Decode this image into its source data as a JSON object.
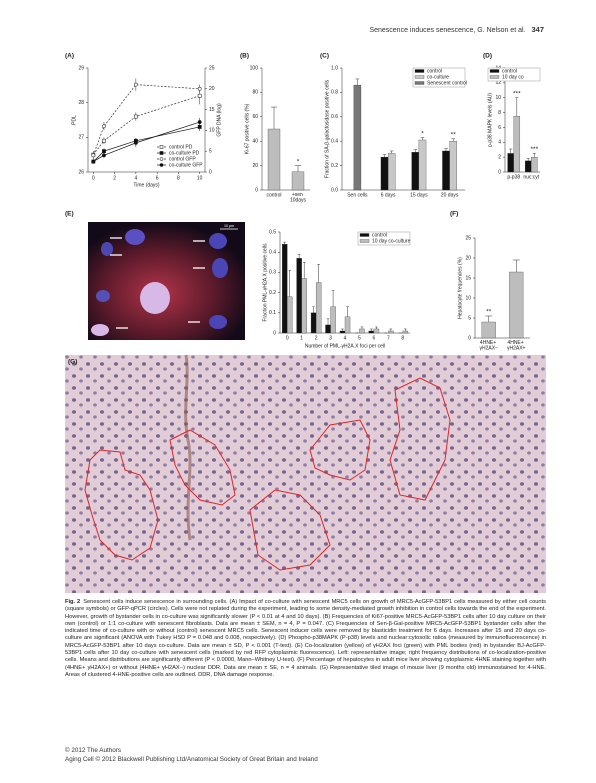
{
  "header": {
    "running_title": "Senescence induces senescence, G. Nelson et al.",
    "page_number": "347"
  },
  "panel_labels": [
    "(A)",
    "(B)",
    "(C)",
    "(D)",
    "(E)",
    "(F)",
    "(G)"
  ],
  "micrograph_scale": "10 µm",
  "chart_data": [
    {
      "type": "line",
      "xlabel": "Time (days)",
      "ylabel": "PDL",
      "y2label": "GFP DNA (log)",
      "x": [
        0,
        1,
        4,
        10
      ],
      "xlim": [
        -0.5,
        10.5
      ],
      "xticks": [
        0,
        2,
        4,
        6,
        8,
        10
      ],
      "ylim": [
        26,
        29
      ],
      "yticks": [
        26,
        27,
        28,
        29
      ],
      "y2lim": [
        0,
        25
      ],
      "y2ticks": [
        0,
        5,
        10,
        15,
        20,
        25
      ],
      "legend": "lower right",
      "series": [
        {
          "name": "control PD",
          "color": "#333333",
          "marker": "square",
          "filled": false,
          "dashed": true,
          "values": [
            26.5,
            26.9,
            27.6,
            28.2
          ],
          "errors": [
            0.1,
            0.1,
            0.12,
            0.25
          ]
        },
        {
          "name": "co-culture PD",
          "color": "#111111",
          "marker": "square",
          "filled": true,
          "dashed": false,
          "values": [
            26.3,
            26.6,
            26.9,
            27.3
          ],
          "errors": [
            0.05,
            0.08,
            0.08,
            0.12
          ]
        },
        {
          "name": "control GFP",
          "color": "#333333",
          "marker": "circle",
          "filled": false,
          "dashed": true,
          "axis": "y2",
          "values": [
            4,
            11,
            21,
            20
          ],
          "errors": [
            1,
            1,
            1.5,
            1
          ]
        },
        {
          "name": "co-culture GFP",
          "color": "#111111",
          "marker": "circle",
          "filled": true,
          "dashed": false,
          "axis": "y2",
          "values": [
            2.5,
            4,
            7,
            12
          ],
          "errors": [
            0.5,
            0.5,
            1,
            1
          ]
        }
      ]
    },
    {
      "type": "bar",
      "ylabel": "Ki-67 positive cells (%)",
      "categories": [
        "control",
        "+sen 10days"
      ],
      "values": [
        50,
        15
      ],
      "errors": [
        18,
        5
      ],
      "color": "#bdbdbd",
      "ylim": [
        0,
        100
      ],
      "yticks": [
        0,
        20,
        40,
        60,
        80,
        100
      ],
      "annotations": [
        "*"
      ]
    },
    {
      "type": "bar",
      "ylabel": "Fraction of SA-β-galactosidase positive cells",
      "categories": [
        "Sen cells",
        "6 days",
        "15 days",
        "20 days"
      ],
      "legend": "upper right",
      "ylim": [
        0,
        1
      ],
      "yticks": [
        {
          "value": 0,
          "label": "0.0"
        },
        0.2,
        0.4,
        0.6,
        0.8,
        {
          "value": 1,
          "label": "1.0"
        }
      ],
      "series": [
        {
          "name": "control",
          "color": "#111111",
          "values": [
            null,
            0.27,
            0.31,
            0.32
          ],
          "errors": [
            null,
            0.02,
            0.02,
            0.02
          ]
        },
        {
          "name": "co-culture",
          "color": "#c8c8c8",
          "values": [
            null,
            0.3,
            0.41,
            0.4
          ],
          "errors": [
            null,
            0.02,
            0.02,
            0.02
          ]
        },
        {
          "name": "Senescent control",
          "color": "#777777",
          "values": [
            0.86,
            null,
            null,
            null
          ],
          "errors": [
            0.05,
            null,
            null,
            null
          ]
        }
      ],
      "annotations": [
        "*",
        "**"
      ]
    },
    {
      "type": "bar",
      "ylabel": "p-p38 MAPK levels (AU)",
      "categories": [
        "p-p38",
        "nuc:cyt"
      ],
      "legend": "upper right",
      "ylim": [
        0,
        14
      ],
      "yticks": [
        0,
        2,
        4,
        6,
        8,
        10,
        12,
        14
      ],
      "series": [
        {
          "name": "control",
          "color": "#111111",
          "values": [
            2.5,
            1.5
          ],
          "errors": [
            0.6,
            0.3
          ]
        },
        {
          "name": "10 day co",
          "color": "#bdbdbd",
          "values": [
            7.5,
            2
          ],
          "errors": [
            2.5,
            0.5
          ]
        }
      ],
      "annotations": [
        "***",
        "***"
      ]
    },
    {
      "type": "bar",
      "ylabel": "Fraction PML-γH2A.X positive cells",
      "xlabel": "Number of PML-γH2A.X foci per cell",
      "categories": [
        "0",
        "1",
        "2",
        "3",
        "4",
        "5",
        "6",
        "7",
        "8"
      ],
      "legend": "upper right",
      "ylim": [
        0,
        0.5
      ],
      "yticks": [
        0,
        0.1,
        0.2,
        0.3,
        0.4,
        0.5
      ],
      "series": [
        {
          "name": "control",
          "color": "#111111",
          "values": [
            0.44,
            0.37,
            0.1,
            0.04,
            0.01,
            0,
            0.01,
            0,
            0
          ],
          "errors": [
            0.01,
            0.02,
            0.03,
            0.03,
            0.01,
            0,
            0.01,
            0,
            0
          ]
        },
        {
          "name": "10 day co-culture",
          "color": "#bdbdbd",
          "values": [
            0.18,
            0.27,
            0.25,
            0.13,
            0.08,
            0.02,
            0.02,
            0.01,
            0.01
          ],
          "errors": [
            0.13,
            0.08,
            0.09,
            0.08,
            0.05,
            0.01,
            0.01,
            0.01,
            0.01
          ]
        }
      ]
    },
    {
      "type": "bar",
      "ylabel": "Hepatocyte frequencies (%)",
      "categories": [
        "4HNE+ γH2AX−",
        "4HNE+ γH2AX+"
      ],
      "values": [
        4,
        16.5
      ],
      "errors": [
        1.5,
        3
      ],
      "color": "#bdbdbd",
      "ylim": [
        0,
        25
      ],
      "yticks": [
        0,
        5,
        10,
        15,
        20,
        25
      ],
      "annotations": [
        "**"
      ]
    }
  ],
  "caption": {
    "label": "Fig. 2",
    "text": "Senescent cells induce senescence in surrounding cells. (A) Impact of co-culture with senescent MRC5 cells on growth of MRC5-AcGFP-53BP1 cells measured by either cell counts (square symbols) or GFP-qPCR (circles). Cells were not replated during the experiment, leading to some density-mediated growth inhibition in control cells towards the end of the experiment. However, growth of bystander cells in co-culture was significantly slower (P < 0.01 at 4 and 10 days). (B) Frequencies of Ki67-positive MRC5-AcGFP-53BP1 cells after 10 day culture on their own (control) or 1:1 co-culture with senescent fibroblasts. Data are mean ± SEM, n = 4, P = 0.047. (C) Frequencies of Sen-β-Gal-positive MRC5-AcGFP-53BP1 bystander cells after the indicated time of co-culture with or without (control) senescent MRC5 cells. Senescent inducer cells were removed by blasticidin treatment for 6 days. Increases after 15 and 20 days co-culture are significant (ANOVA with Tukey HSD P = 0.048 and 0.008, respectively). (D) Phospho-p38MAPK (P-p38) levels and nuclear:cytosolic ratios (measured by immunofluorescence) in MRC5-AcGFP-53BP1 after 10 days co-culture. Data are mean ± SD, P < 0.001 (T-test). (E) Co-localization (yellow) of γH2AX foci (green) with PML bodies (red) in bystander BJ-AcGFP-53BP1 cells after 10 day co-culture with senescent cells (marked by red RFP cytoplasmic fluorescence). Left: representative image; right frequency distributions of co-localization-positive cells. Means and distributions are significantly different (P < 0.0000, Mann–Whitney U-test). (F) Percentage of hepatocytes in adult mice liver showing cytoplasmic 4HNE staining together with (4HNE+ γH2AX+) or without (4HNE+ γH2AX−) nuclear DDR. Data are mean ± SE, n = 4 animals. (G) Representative tiled image of mouse liver (9 months old) immunostained for 4-HNE. Areas of clustered 4-HNE-positive cells are outlined. DDR, DNA damage response."
  },
  "footer": {
    "copyright": "© 2012 The Authors",
    "journal": "Aging Cell © 2012 Blackwell Publishing Ltd/Anatomical Society of Great Britain and Ireland"
  }
}
